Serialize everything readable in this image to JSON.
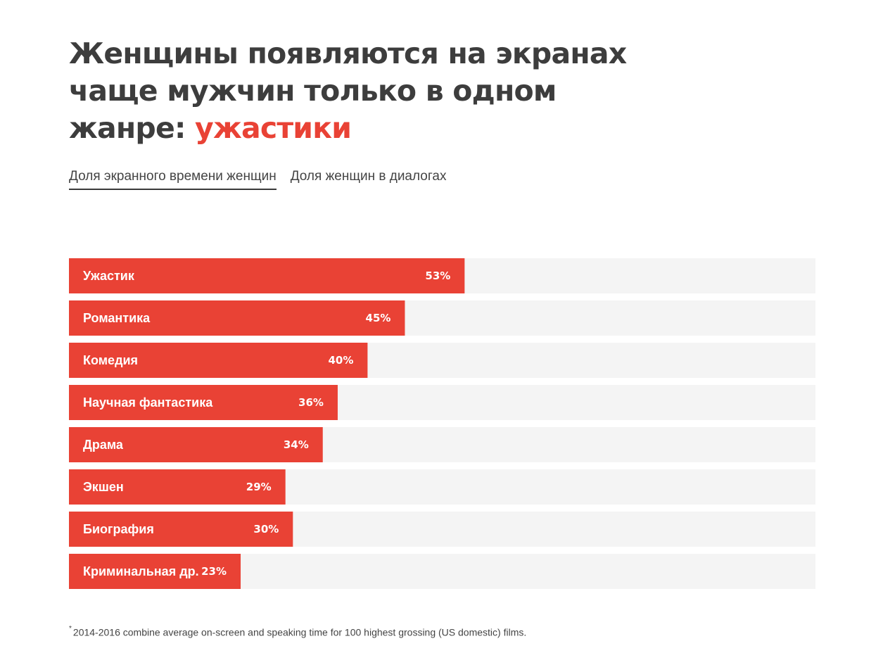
{
  "title": {
    "line1": "Женщины появляются на экранах",
    "line2": "чаще мужчин только в одном",
    "line3_prefix": "жанре: ",
    "line3_accent": "ужастики"
  },
  "tabs": [
    {
      "label": "Доля экранного времени женщин",
      "active": true
    },
    {
      "label": "Доля женщин в диалогах",
      "active": false
    }
  ],
  "colors": {
    "accent": "#e94235",
    "row_background": "#f4f4f4",
    "title_text": "#3d3d3d"
  },
  "chart_data": {
    "type": "bar",
    "orientation": "horizontal",
    "categories": [
      "Ужастик",
      "Романтика",
      "Комедия",
      "Научная фантастика",
      "Драма",
      "Экшен",
      "Биография",
      "Криминальная др."
    ],
    "values": [
      53,
      45,
      40,
      36,
      34,
      29,
      30,
      23
    ],
    "value_labels": [
      "53%",
      "45%",
      "40%",
      "36%",
      "34%",
      "29%",
      "30%",
      "23%"
    ],
    "xlim": [
      0,
      100
    ],
    "grid": false,
    "legend": "none"
  },
  "footnote": {
    "marker": "*",
    "text": "2014-2016 combine average on-screen and speaking time for 100 highest grossing (US domestic) films."
  }
}
